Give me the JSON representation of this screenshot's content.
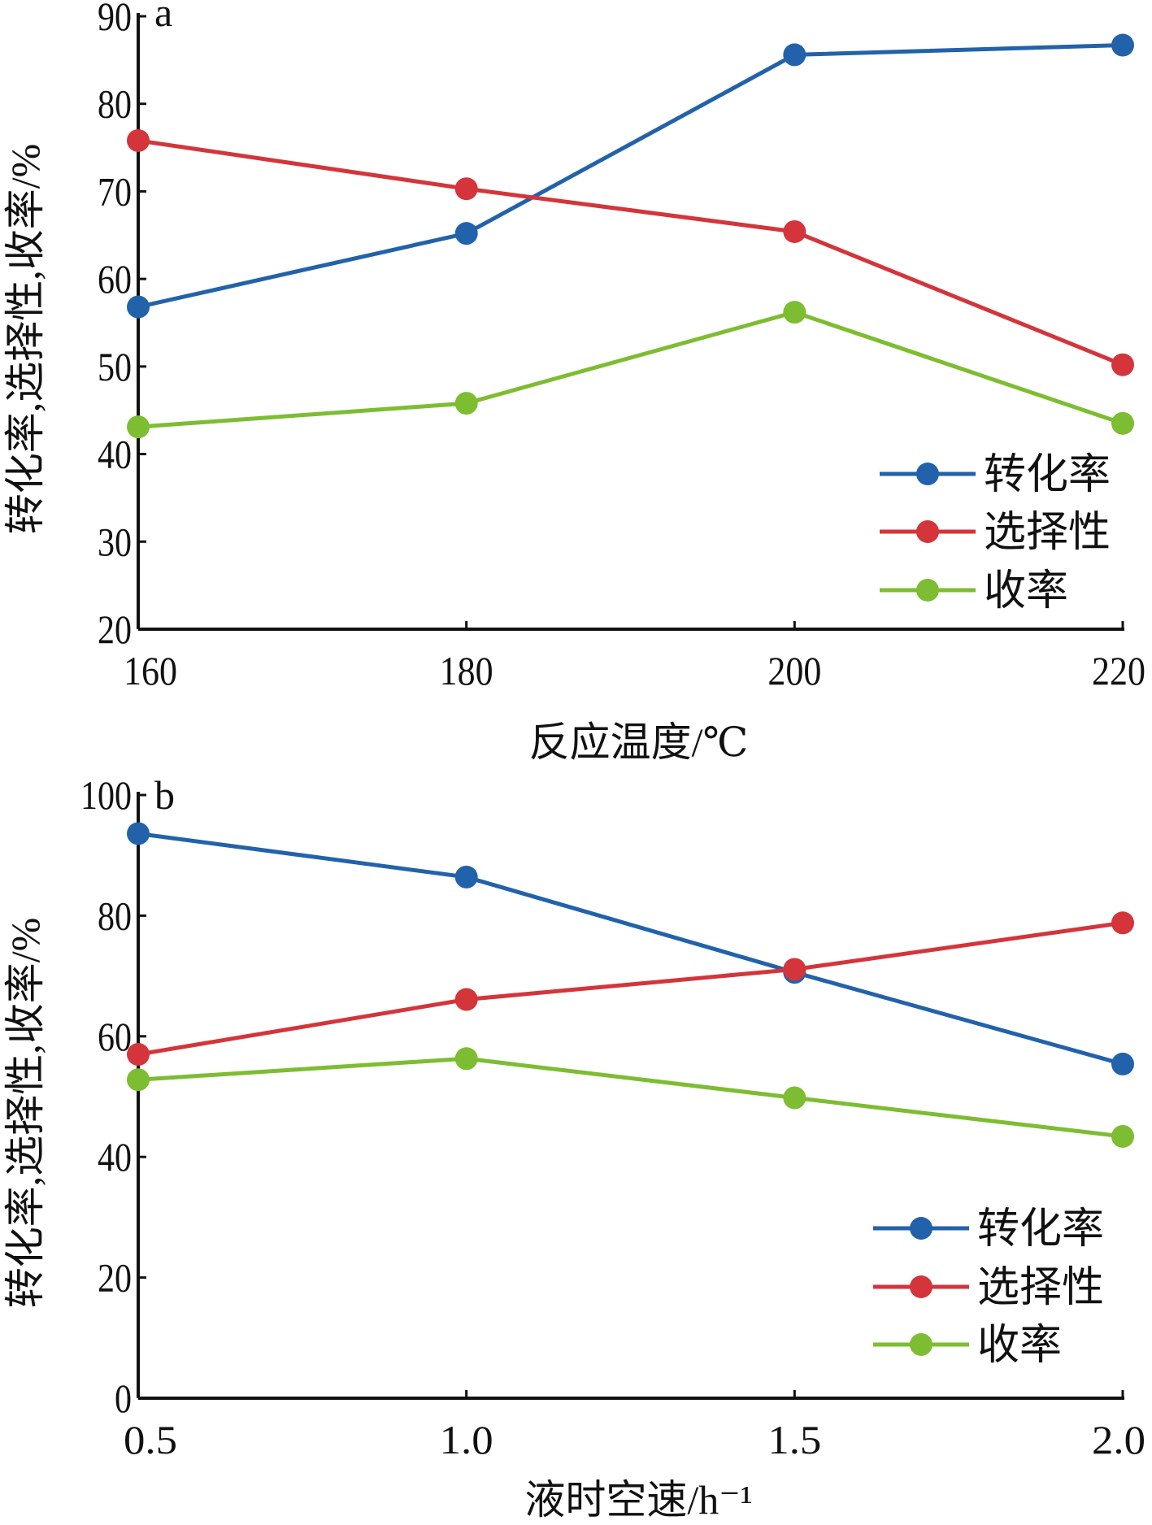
{
  "colors": {
    "conversion": "#2262ab",
    "selectivity": "#d3353b",
    "yield": "#7dbd31"
  },
  "chart_data": [
    {
      "type": "line",
      "panel_label": "a",
      "xlabel": "反应温度/℃",
      "ylabel": "转化率,选择性,收率/%",
      "x": [
        160,
        180,
        200,
        220
      ],
      "xticks": [
        "160",
        "180",
        "200",
        "220"
      ],
      "yticks": [
        "20",
        "30",
        "40",
        "50",
        "60",
        "70",
        "80",
        "90"
      ],
      "ylim": [
        20,
        90
      ],
      "xlim": [
        160,
        220
      ],
      "legend_position": "bottom-right",
      "series": [
        {
          "name": "转化率",
          "color_key": "conversion",
          "values": [
            56.8,
            65.2,
            85.6,
            86.7
          ]
        },
        {
          "name": "选择性",
          "color_key": "selectivity",
          "values": [
            75.8,
            70.3,
            65.4,
            50.2
          ]
        },
        {
          "name": "收率",
          "color_key": "yield",
          "values": [
            43.1,
            45.8,
            56.2,
            43.5
          ]
        }
      ]
    },
    {
      "type": "line",
      "panel_label": "b",
      "xlabel": "液时空速/h⁻¹",
      "ylabel": "转化率,选择性,收率/%",
      "x": [
        0.5,
        1.0,
        1.5,
        2.0
      ],
      "xticks": [
        "0.5",
        "1.0",
        "1.5",
        "2.0"
      ],
      "yticks": [
        "0",
        "20",
        "40",
        "60",
        "80",
        "100"
      ],
      "ylim": [
        0,
        100
      ],
      "xlim": [
        0.5,
        2.0
      ],
      "legend_position": "bottom-right",
      "series": [
        {
          "name": "转化率",
          "color_key": "conversion",
          "values": [
            93.6,
            86.4,
            70.6,
            55.4
          ]
        },
        {
          "name": "选择性",
          "color_key": "selectivity",
          "values": [
            57.0,
            66.1,
            71.1,
            78.8
          ]
        },
        {
          "name": "收率",
          "color_key": "yield",
          "values": [
            52.8,
            56.3,
            49.8,
            43.4
          ]
        }
      ]
    }
  ]
}
